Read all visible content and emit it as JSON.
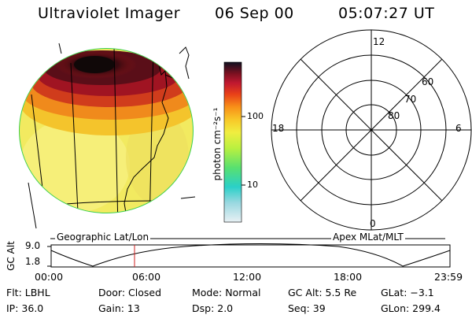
{
  "header": {
    "title": "Ultraviolet Imager",
    "date": "06 Sep 00",
    "time": "05:07:27 UT"
  },
  "colorbar": {
    "unit_label": "photon cm⁻²s⁻¹",
    "ticks": [
      "100",
      "10"
    ]
  },
  "polar_plot": {
    "radial_labels": [
      "80",
      "70",
      "60"
    ],
    "mlt_labels": [
      "12",
      "18",
      "6",
      "0"
    ],
    "grid_color": "#000000"
  },
  "projection_labels": {
    "left": "Geographic Lat/Lon",
    "right": "Apex MLat/MLT"
  },
  "altitude_plot": {
    "ylabel": "GC Alt",
    "yticks": [
      "9.0",
      "1.8"
    ],
    "xticks": [
      "00:00",
      "06:00",
      "12:00",
      "18:00",
      "23:59"
    ],
    "marker_time": "05:07",
    "marker_color": "#d02020"
  },
  "info": {
    "flt": "Flt: LBHL",
    "door": "Door: Closed",
    "mode": "Mode: Normal",
    "gc_alt": "GC Alt: 5.5 Re",
    "glat": "GLat:  −3.1",
    "ip": "IP: 36.0",
    "gain": "Gain: 13",
    "dsp": "Dsp:    2.0",
    "seq": "Seq: 39",
    "glon": "GLon: 299.4"
  },
  "colors": {
    "aurora_core": "#1a0a0a",
    "aurora_red": "#8b1010",
    "oval_rim": "#3cd050",
    "background_yellow": "#f2ea60"
  }
}
